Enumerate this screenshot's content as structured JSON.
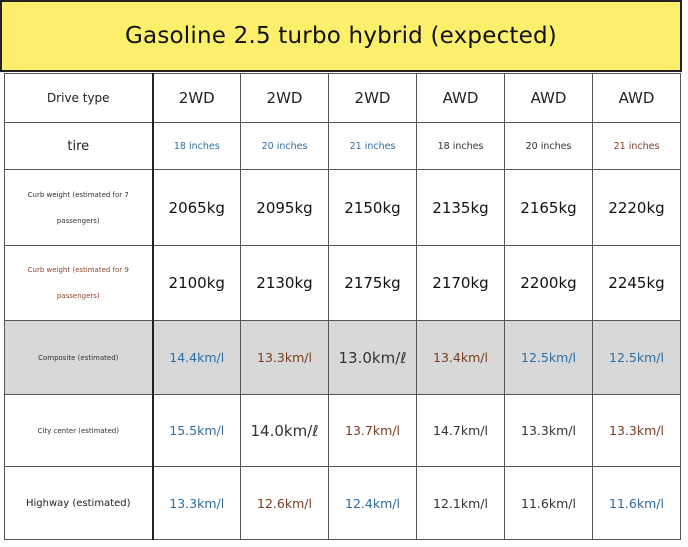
{
  "title": "Gasoline 2.5 turbo hybrid (expected)",
  "colors": {
    "title_bg": "#fbef6c",
    "blue_text": "#2f6ea3",
    "brown_text": "#7a3e22",
    "highlight_row": "#d8d8d8"
  },
  "rows": {
    "drive_type": {
      "label": "Drive type",
      "values": [
        "2WD",
        "2WD",
        "2WD",
        "AWD",
        "AWD",
        "AWD"
      ]
    },
    "tire": {
      "label": "tire",
      "values": [
        "18 inches",
        "20 inches",
        "21 inches",
        "18 inches",
        "20 inches",
        "21 inches"
      ]
    },
    "curb_weight_7": {
      "label": "Curb weight (estimated for 7 passengers)",
      "values": [
        "2065kg",
        "2095kg",
        "2150kg",
        "2135kg",
        "2165kg",
        "2220kg"
      ]
    },
    "curb_weight_9": {
      "label": "Curb weight (estimated for 9 passengers)",
      "values": [
        "2100kg",
        "2130kg",
        "2175kg",
        "2170kg",
        "2200kg",
        "2245kg"
      ]
    },
    "composite": {
      "label": "Composite (estimated)",
      "values": [
        "14.4km/l",
        "13.3km/l",
        "13.0km/ℓ",
        "13.4km/l",
        "12.5km/l",
        "12.5km/l"
      ]
    },
    "city": {
      "label": "City center (estimated)",
      "values": [
        "15.5km/l",
        "14.0km/ℓ",
        "13.7km/l",
        "14.7km/l",
        "13.3km/l",
        "13.3km/l"
      ]
    },
    "highway": {
      "label": "Highway (estimated)",
      "values": [
        "13.3km/l",
        "12.6km/l",
        "12.4km/l",
        "12.1km/l",
        "11.6km/l",
        "11.6km/l"
      ]
    }
  }
}
